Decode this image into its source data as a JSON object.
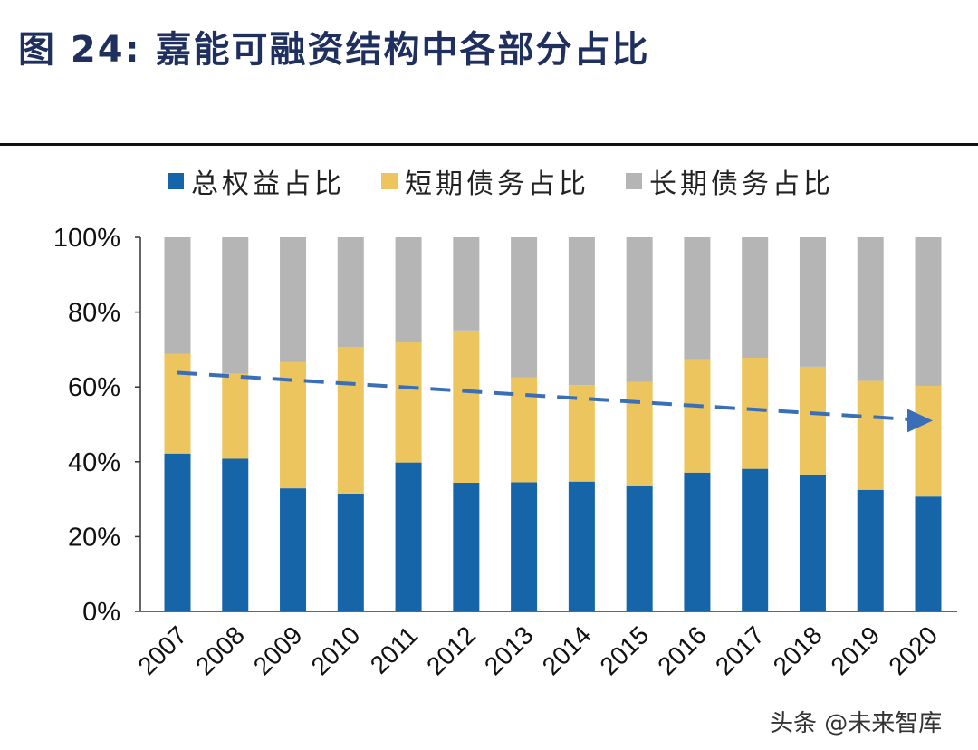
{
  "title": "图 24:  嘉能可融资结构中各部分占比",
  "watermark": "头条 @未来智库",
  "chart_data": {
    "type": "bar",
    "stacked": true,
    "title": "图 24:  嘉能可融资结构中各部分占比",
    "xlabel": "",
    "ylabel": "",
    "ylim": [
      0,
      100
    ],
    "yticks": [
      "0%",
      "20%",
      "40%",
      "60%",
      "80%",
      "100%"
    ],
    "grid": false,
    "legend_position": "top",
    "categories": [
      "2007",
      "2008",
      "2009",
      "2010",
      "2011",
      "2012",
      "2013",
      "2014",
      "2015",
      "2016",
      "2017",
      "2018",
      "2019",
      "2020"
    ],
    "series": [
      {
        "name": "总权益占比",
        "color": "#1565a8",
        "values": [
          42.2,
          40.8,
          32.9,
          31.5,
          39.8,
          34.4,
          34.5,
          34.7,
          33.7,
          37.1,
          38.1,
          36.6,
          32.5,
          30.7
        ]
      },
      {
        "name": "短期债务占比",
        "color": "#ecc55f",
        "values": [
          26.6,
          22.7,
          33.7,
          39.2,
          32.1,
          40.7,
          28.0,
          25.8,
          27.6,
          30.3,
          29.7,
          28.8,
          29.1,
          29.6
        ]
      },
      {
        "name": "长期债务占比",
        "color": "#b5b5b5",
        "values": [
          31.2,
          36.5,
          33.4,
          29.3,
          28.1,
          24.9,
          37.5,
          39.5,
          38.7,
          32.6,
          32.2,
          34.6,
          38.4,
          39.7
        ]
      }
    ],
    "annotations": [
      {
        "type": "dashed-arrow",
        "color": "#3a6fb8",
        "from": {
          "x": "2007",
          "y": 63.8
        },
        "to": {
          "x": "2020",
          "y": 51
        }
      }
    ]
  }
}
